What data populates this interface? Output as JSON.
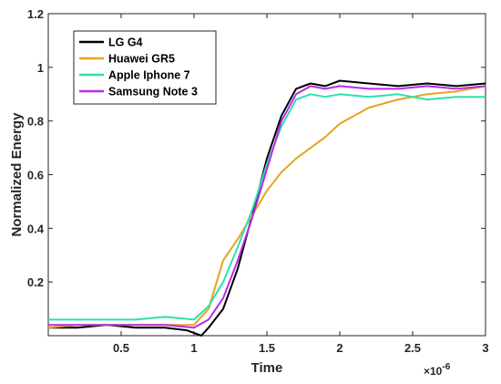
{
  "chart_data": {
    "type": "line",
    "title": "",
    "xlabel": "Time",
    "ylabel": "Normalized Energy",
    "x_exponent_label": "×10",
    "x_exponent_power": "-6",
    "xlim": [
      0,
      3
    ],
    "ylim": [
      0,
      1.2
    ],
    "xticks": [
      0.5,
      1,
      1.5,
      2,
      2.5,
      3
    ],
    "xtick_labels": [
      "0.5",
      "1",
      "1.5",
      "2",
      "2.5",
      "3"
    ],
    "yticks": [
      0.2,
      0.4,
      0.6,
      0.8,
      1,
      1.2
    ],
    "ytick_labels": [
      "0.2",
      "0.4",
      "0.6",
      "0.8",
      "1",
      "1.2"
    ],
    "grid": false,
    "legend_position": "top-left",
    "series": [
      {
        "name": "LG G4",
        "color": "#000000",
        "x": [
          0.0,
          0.2,
          0.4,
          0.6,
          0.8,
          0.95,
          1.05,
          1.1,
          1.2,
          1.3,
          1.4,
          1.5,
          1.6,
          1.7,
          1.8,
          1.9,
          2.0,
          2.2,
          2.4,
          2.6,
          2.8,
          3.0
        ],
        "y": [
          0.03,
          0.03,
          0.04,
          0.03,
          0.03,
          0.02,
          0.0,
          0.03,
          0.1,
          0.25,
          0.45,
          0.66,
          0.82,
          0.92,
          0.94,
          0.93,
          0.95,
          0.94,
          0.93,
          0.94,
          0.93,
          0.94
        ]
      },
      {
        "name": "Huawei GR5",
        "color": "#E8A31C",
        "x": [
          0.0,
          0.2,
          0.4,
          0.6,
          0.8,
          1.0,
          1.1,
          1.2,
          1.3,
          1.4,
          1.5,
          1.6,
          1.7,
          1.8,
          1.9,
          2.0,
          2.1,
          2.2,
          2.4,
          2.6,
          2.8,
          3.0
        ],
        "y": [
          0.03,
          0.04,
          0.04,
          0.04,
          0.04,
          0.04,
          0.1,
          0.28,
          0.36,
          0.45,
          0.54,
          0.61,
          0.66,
          0.7,
          0.74,
          0.79,
          0.82,
          0.85,
          0.88,
          0.9,
          0.91,
          0.93
        ]
      },
      {
        "name": "Apple Iphone 7",
        "color": "#2EE0B0",
        "x": [
          0.0,
          0.2,
          0.4,
          0.6,
          0.8,
          1.0,
          1.1,
          1.2,
          1.3,
          1.4,
          1.5,
          1.6,
          1.7,
          1.8,
          1.9,
          2.0,
          2.2,
          2.4,
          2.6,
          2.8,
          3.0
        ],
        "y": [
          0.06,
          0.06,
          0.06,
          0.06,
          0.07,
          0.06,
          0.11,
          0.2,
          0.33,
          0.47,
          0.64,
          0.78,
          0.88,
          0.9,
          0.89,
          0.9,
          0.89,
          0.9,
          0.88,
          0.89,
          0.89
        ]
      },
      {
        "name": "Samsung Note 3",
        "color": "#B82BE8",
        "x": [
          0.0,
          0.2,
          0.4,
          0.6,
          0.8,
          1.0,
          1.1,
          1.2,
          1.3,
          1.4,
          1.5,
          1.6,
          1.7,
          1.8,
          1.9,
          2.0,
          2.2,
          2.4,
          2.6,
          2.8,
          3.0
        ],
        "y": [
          0.04,
          0.04,
          0.04,
          0.04,
          0.04,
          0.03,
          0.06,
          0.14,
          0.28,
          0.44,
          0.62,
          0.8,
          0.9,
          0.93,
          0.92,
          0.93,
          0.92,
          0.92,
          0.93,
          0.92,
          0.93
        ]
      }
    ]
  }
}
